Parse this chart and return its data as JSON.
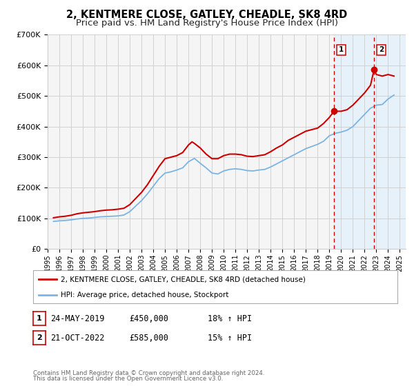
{
  "title": "2, KENTMERE CLOSE, GATLEY, CHEADLE, SK8 4RD",
  "subtitle": "Price paid vs. HM Land Registry's House Price Index (HPI)",
  "ylim": [
    0,
    700000
  ],
  "xlim_start": 1995.0,
  "xlim_end": 2025.5,
  "yticks": [
    0,
    100000,
    200000,
    300000,
    400000,
    500000,
    600000,
    700000
  ],
  "ytick_labels": [
    "£0",
    "£100K",
    "£200K",
    "£300K",
    "£400K",
    "£500K",
    "£600K",
    "£700K"
  ],
  "xticks": [
    1995,
    1996,
    1997,
    1998,
    1999,
    2000,
    2001,
    2002,
    2003,
    2004,
    2005,
    2006,
    2007,
    2008,
    2009,
    2010,
    2011,
    2012,
    2013,
    2014,
    2015,
    2016,
    2017,
    2018,
    2019,
    2020,
    2021,
    2022,
    2023,
    2024,
    2025
  ],
  "red_line_color": "#cc0000",
  "blue_line_color": "#7bb4e3",
  "vline1_x": 2019.388,
  "vline2_x": 2022.8,
  "vline_color": "#cc0000",
  "shade_color": "#ddeeff",
  "point1_x": 2019.388,
  "point1_y": 450000,
  "point2_x": 2022.8,
  "point2_y": 585000,
  "legend_label1": "2, KENTMERE CLOSE, GATLEY, CHEADLE, SK8 4RD (detached house)",
  "legend_label2": "HPI: Average price, detached house, Stockport",
  "table_row1": [
    "1",
    "24-MAY-2019",
    "£450,000",
    "18% ↑ HPI"
  ],
  "table_row2": [
    "2",
    "21-OCT-2022",
    "£585,000",
    "15% ↑ HPI"
  ],
  "footnote1": "Contains HM Land Registry data © Crown copyright and database right 2024.",
  "footnote2": "This data is licensed under the Open Government Licence v3.0.",
  "title_fontsize": 10.5,
  "subtitle_fontsize": 9.5,
  "grid_color": "#cccccc",
  "bg_color": "#ffffff",
  "plot_bg_color": "#f5f5f5"
}
